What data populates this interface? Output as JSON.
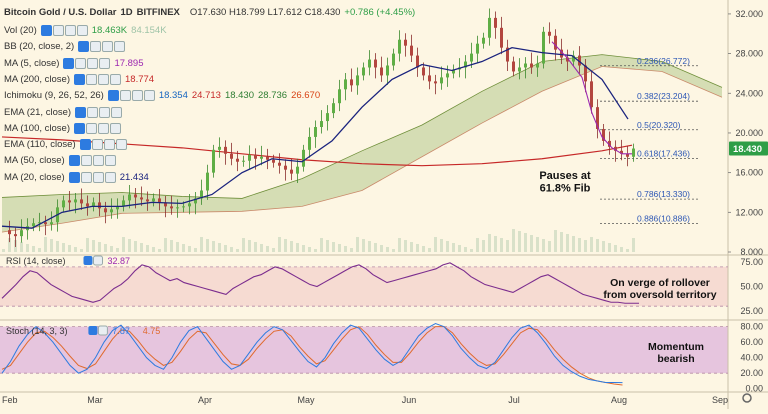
{
  "header": {
    "symbol": "Bitcoin Gold / U.S. Dollar",
    "interval": "1D",
    "exchange": "BITFINEX",
    "ohlc": "O17.630  H18.799  L17.612  C18.430",
    "change": "+0.786 (+4.45%)"
  },
  "indicators": [
    {
      "label": "Vol (20)",
      "values": [
        "18.463K",
        "84.154K"
      ],
      "colors": [
        "#2e9e47",
        "#9fc4a8"
      ]
    },
    {
      "label": "BB (20, close, 2)",
      "values": [],
      "colors": []
    },
    {
      "label": "MA (5, close)",
      "values": [
        "17.895"
      ],
      "colors": [
        "#9c27b0"
      ]
    },
    {
      "label": "MA (200, close)",
      "values": [
        "18.774"
      ],
      "colors": [
        "#c62828"
      ]
    },
    {
      "label": "Ichimoku (9, 26, 52, 26)",
      "values": [
        "18.354",
        "24.713",
        "18.430",
        "28.736",
        "26.670"
      ],
      "colors": [
        "#1565c0",
        "#c62828",
        "#2e7d32",
        "#2e7d32",
        "#d84315"
      ]
    },
    {
      "label": "EMA (21, close)",
      "values": [],
      "colors": []
    },
    {
      "label": "MA (100, close)",
      "values": [],
      "colors": []
    },
    {
      "label": "EMA (110, close)",
      "values": [],
      "colors": []
    },
    {
      "label": "MA (50, close)",
      "values": [],
      "colors": []
    },
    {
      "label": "MA (20, close)",
      "values": [
        "21.434"
      ],
      "colors": [
        "#1a237e"
      ]
    }
  ],
  "annotations": {
    "fib_pause": "Pauses at\n61.8% Fib",
    "rsi_note": "On verge of rollover\nfrom oversold territory",
    "stoch_note": "Momentum\nbearish"
  },
  "rsi_panel": {
    "label": "RSI (14, close)",
    "value": "32.87",
    "value_color": "#9c27b0"
  },
  "stoch_panel": {
    "label": "Stoch (14, 3, 3)",
    "values": [
      "7.87",
      "4.75"
    ],
    "colors": [
      "#2d7be0",
      "#e06a2d"
    ]
  },
  "chart_data": {
    "type": "candlestick",
    "price_axis": {
      "ticks": [
        8.0,
        12.0,
        16.0,
        20.0,
        24.0,
        28.0,
        32.0
      ],
      "range": [
        8.0,
        33.0
      ]
    },
    "rsi_axis": {
      "ticks": [
        25.0,
        50.0,
        75.0
      ],
      "overbought": 70,
      "oversold": 30
    },
    "stoch_axis": {
      "ticks": [
        0.0,
        20.0,
        40.0,
        60.0,
        80.0
      ],
      "upper": 80,
      "lower": 20
    },
    "x_ticks": [
      "Feb",
      "Mar",
      "Apr",
      "May",
      "Jun",
      "Jul",
      "Aug",
      "Sep"
    ],
    "last_price": "18.430",
    "last_price_color": "#2e9e47",
    "fib_levels": [
      {
        "label": "0.236(26.772)",
        "value": 26.772
      },
      {
        "label": "0.382(23.204)",
        "value": 23.204
      },
      {
        "label": "0.5(20.320)",
        "value": 20.32
      },
      {
        "label": "0.618(17.436)",
        "value": 17.436
      },
      {
        "label": "0.786(13.330)",
        "value": 13.33
      },
      {
        "label": "0.886(10.886)",
        "value": 10.886
      }
    ],
    "price_path": [
      [
        0,
        10.2
      ],
      [
        6,
        9.8
      ],
      [
        12,
        9.6
      ],
      [
        18,
        10.2
      ],
      [
        24,
        10.6
      ],
      [
        30,
        10.9
      ],
      [
        36,
        11.0
      ],
      [
        42,
        10.8
      ],
      [
        48,
        11.0
      ],
      [
        54,
        12.5
      ],
      [
        60,
        13.2
      ],
      [
        66,
        13.0
      ],
      [
        72,
        13.3
      ],
      [
        78,
        12.9
      ],
      [
        84,
        12.6
      ],
      [
        90,
        13.0
      ],
      [
        96,
        12.4
      ],
      [
        102,
        12.0
      ],
      [
        108,
        12.3
      ],
      [
        114,
        12.6
      ],
      [
        120,
        13.2
      ],
      [
        126,
        13.8
      ],
      [
        132,
        13.5
      ],
      [
        138,
        13.3
      ],
      [
        144,
        13.1
      ],
      [
        150,
        13.4
      ],
      [
        156,
        13.0
      ],
      [
        162,
        12.6
      ],
      [
        168,
        12.4
      ],
      [
        174,
        12.5
      ],
      [
        180,
        12.6
      ],
      [
        186,
        12.9
      ],
      [
        192,
        13.4
      ],
      [
        198,
        14.2
      ],
      [
        204,
        16.0
      ],
      [
        210,
        18.3
      ],
      [
        216,
        18.6
      ],
      [
        222,
        17.9
      ],
      [
        228,
        17.4
      ],
      [
        234,
        17.1
      ],
      [
        240,
        17.2
      ],
      [
        246,
        17.8
      ],
      [
        252,
        17.4
      ],
      [
        258,
        17.6
      ],
      [
        264,
        17.3
      ],
      [
        270,
        17.0
      ],
      [
        276,
        16.7
      ],
      [
        282,
        16.3
      ],
      [
        288,
        15.9
      ],
      [
        294,
        16.6
      ],
      [
        300,
        18.3
      ],
      [
        306,
        19.6
      ],
      [
        312,
        20.6
      ],
      [
        318,
        21.2
      ],
      [
        324,
        22.0
      ],
      [
        330,
        23.0
      ],
      [
        336,
        24.4
      ],
      [
        342,
        25.4
      ],
      [
        348,
        24.8
      ],
      [
        354,
        25.8
      ],
      [
        360,
        26.6
      ],
      [
        366,
        27.4
      ],
      [
        372,
        26.6
      ],
      [
        378,
        25.8
      ],
      [
        384,
        26.8
      ],
      [
        390,
        28.0
      ],
      [
        396,
        29.4
      ],
      [
        402,
        28.8
      ],
      [
        408,
        27.8
      ],
      [
        414,
        26.6
      ],
      [
        420,
        25.8
      ],
      [
        426,
        25.2
      ],
      [
        432,
        25.0
      ],
      [
        438,
        25.6
      ],
      [
        444,
        26.0
      ],
      [
        450,
        26.4
      ],
      [
        456,
        26.6
      ],
      [
        462,
        27.2
      ],
      [
        468,
        28.0
      ],
      [
        474,
        29.0
      ],
      [
        480,
        29.6
      ],
      [
        486,
        31.6
      ],
      [
        492,
        30.6
      ],
      [
        498,
        28.6
      ],
      [
        504,
        27.2
      ],
      [
        510,
        26.2
      ],
      [
        516,
        26.6
      ],
      [
        522,
        27.0
      ],
      [
        528,
        26.6
      ],
      [
        534,
        27.0
      ],
      [
        540,
        30.2
      ],
      [
        546,
        29.8
      ],
      [
        552,
        28.4
      ],
      [
        558,
        27.6
      ],
      [
        564,
        27.2
      ],
      [
        570,
        27.8
      ],
      [
        576,
        26.8
      ],
      [
        582,
        25.2
      ],
      [
        588,
        22.6
      ],
      [
        594,
        20.4
      ],
      [
        600,
        19.2
      ],
      [
        606,
        18.6
      ],
      [
        612,
        18.2
      ],
      [
        618,
        17.9
      ],
      [
        624,
        17.6
      ],
      [
        630,
        18.43
      ]
    ],
    "ma20_path": [
      [
        0,
        10.6
      ],
      [
        30,
        10.4
      ],
      [
        60,
        12.0
      ],
      [
        90,
        12.6
      ],
      [
        120,
        12.6
      ],
      [
        150,
        13.0
      ],
      [
        180,
        12.9
      ],
      [
        210,
        13.8
      ],
      [
        240,
        16.0
      ],
      [
        270,
        17.4
      ],
      [
        300,
        17.1
      ],
      [
        330,
        19.2
      ],
      [
        360,
        22.6
      ],
      [
        390,
        25.4
      ],
      [
        420,
        26.9
      ],
      [
        450,
        26.3
      ],
      [
        480,
        27.2
      ],
      [
        510,
        28.6
      ],
      [
        540,
        28.1
      ],
      [
        570,
        27.8
      ],
      [
        600,
        25.4
      ],
      [
        626,
        21.4
      ]
    ],
    "ma5_path": [
      [
        550,
        29.2
      ],
      [
        565,
        27.6
      ],
      [
        580,
        25.6
      ],
      [
        590,
        22.0
      ],
      [
        600,
        19.6
      ],
      [
        610,
        18.5
      ],
      [
        620,
        17.9
      ],
      [
        630,
        17.9
      ]
    ],
    "ma200_path": [
      [
        0,
        19.6
      ],
      [
        60,
        19.3
      ],
      [
        120,
        18.9
      ],
      [
        180,
        18.5
      ],
      [
        240,
        17.9
      ],
      [
        300,
        17.3
      ],
      [
        360,
        16.9
      ],
      [
        420,
        16.7
      ],
      [
        480,
        16.9
      ],
      [
        540,
        17.4
      ],
      [
        600,
        18.2
      ],
      [
        630,
        18.77
      ]
    ],
    "cloud_upper": [
      [
        0,
        13.5
      ],
      [
        60,
        13.8
      ],
      [
        120,
        14.0
      ],
      [
        180,
        13.6
      ],
      [
        240,
        13.4
      ],
      [
        300,
        15.4
      ],
      [
        360,
        18.2
      ],
      [
        420,
        20.8
      ],
      [
        480,
        24.2
      ],
      [
        540,
        27.2
      ],
      [
        600,
        27.9
      ],
      [
        660,
        27.2
      ],
      [
        720,
        24.6
      ]
    ],
    "cloud_lower": [
      [
        0,
        10.0
      ],
      [
        60,
        10.9
      ],
      [
        120,
        11.9
      ],
      [
        180,
        12.0
      ],
      [
        240,
        12.1
      ],
      [
        300,
        12.6
      ],
      [
        360,
        14.2
      ],
      [
        420,
        17.6
      ],
      [
        480,
        21.0
      ],
      [
        540,
        24.2
      ],
      [
        600,
        26.7
      ],
      [
        660,
        26.2
      ],
      [
        720,
        23.6
      ]
    ],
    "rsi_values": [
      38,
      45,
      52,
      60,
      66,
      64,
      58,
      52,
      48,
      44,
      40,
      38,
      36,
      34,
      36,
      42,
      48,
      52,
      58,
      66,
      72,
      70,
      64,
      60,
      56,
      58,
      54,
      52,
      50,
      48,
      46,
      44,
      42,
      48,
      52,
      56,
      60,
      62,
      66,
      70,
      68,
      64,
      60,
      56,
      52,
      50,
      54,
      58,
      62,
      66,
      70,
      72,
      68,
      62,
      58,
      54,
      56,
      58,
      60,
      62,
      64,
      66,
      68,
      72,
      74,
      70,
      66,
      60,
      56,
      52,
      50,
      48,
      46,
      44,
      48,
      52,
      56,
      60,
      62,
      58,
      54,
      50,
      46,
      42,
      40,
      38,
      36,
      34,
      34,
      33,
      33,
      33
    ],
    "stoch_k": [
      20,
      35,
      55,
      70,
      80,
      72,
      60,
      45,
      30,
      20,
      25,
      40,
      60,
      75,
      82,
      70,
      55,
      40,
      30,
      25,
      40,
      60,
      75,
      80,
      65,
      50,
      35,
      25,
      30,
      45,
      60,
      72,
      80,
      76,
      62,
      48,
      35,
      28,
      40,
      58,
      72,
      82,
      78,
      64,
      50,
      38,
      30,
      36,
      52,
      68,
      78,
      84,
      80,
      68,
      52,
      40,
      30,
      26,
      34,
      50,
      66,
      78,
      82,
      72,
      58,
      42,
      30,
      22,
      16,
      12,
      10,
      8,
      8,
      7.87
    ],
    "stoch_d": [
      25,
      30,
      45,
      60,
      72,
      74,
      66,
      55,
      42,
      30,
      26,
      32,
      48,
      64,
      76,
      74,
      62,
      48,
      38,
      30,
      34,
      48,
      64,
      74,
      72,
      58,
      44,
      32,
      30,
      38,
      52,
      64,
      74,
      76,
      68,
      54,
      42,
      32,
      36,
      50,
      64,
      76,
      80,
      70,
      56,
      44,
      34,
      34,
      46,
      60,
      72,
      80,
      80,
      72,
      58,
      46,
      36,
      30,
      32,
      44,
      58,
      72,
      78,
      76,
      64,
      50,
      38,
      28,
      20,
      14,
      10,
      8,
      6,
      4.75
    ]
  }
}
